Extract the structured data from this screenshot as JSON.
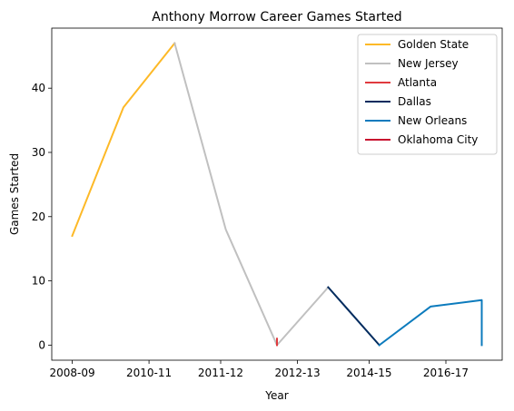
{
  "chart_data": {
    "type": "line",
    "title": "Anthony Morrow Career Games Started",
    "xlabel": "Year",
    "ylabel": "Games Started",
    "x_ticks": [
      "2008-09",
      "2010-11",
      "2011-12",
      "2012-13",
      "2014-15",
      "2016-17"
    ],
    "y_ticks": [
      0,
      10,
      20,
      30,
      40
    ],
    "ylim": [
      -2.35,
      49.35
    ],
    "legend_position": "top-right",
    "series": [
      {
        "name": "Golden State",
        "color": "#FDB927",
        "points": [
          [
            0,
            17
          ],
          [
            1,
            37
          ],
          [
            2,
            47
          ]
        ]
      },
      {
        "name": "New Jersey",
        "color": "#C0C0C0",
        "points": [
          [
            2,
            47
          ],
          [
            3,
            18
          ],
          [
            4,
            0
          ],
          [
            5,
            9
          ]
        ]
      },
      {
        "name": "Atlanta",
        "color": "#E03A3E",
        "points": [
          [
            4,
            0
          ],
          [
            4,
            1
          ]
        ]
      },
      {
        "name": "Dallas",
        "color": "#002B5E",
        "points": [
          [
            5,
            9
          ],
          [
            6,
            0
          ]
        ]
      },
      {
        "name": "New Orleans",
        "color": "#0C7BBD",
        "points": [
          [
            6,
            0
          ],
          [
            7,
            6
          ],
          [
            8,
            7
          ],
          [
            8,
            0
          ]
        ]
      },
      {
        "name": "Oklahoma City",
        "color": "#C8102E",
        "points": []
      }
    ]
  }
}
